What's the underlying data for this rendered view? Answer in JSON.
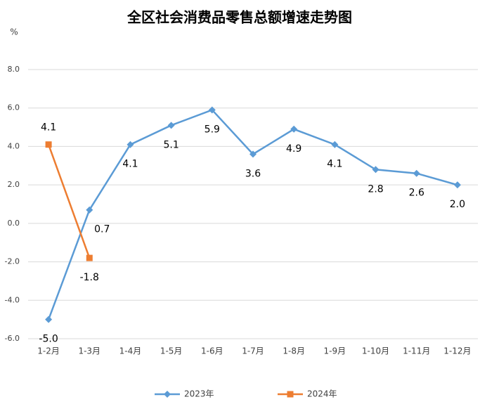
{
  "chart_data": {
    "type": "line",
    "title": "全区社会消费品零售总额增速走势图",
    "y_axis_label": "%",
    "categories": [
      "1-2月",
      "1-3月",
      "1-4月",
      "1-5月",
      "1-6月",
      "1-7月",
      "1-8月",
      "1-9月",
      "1-10月",
      "1-11月",
      "1-12月"
    ],
    "series": [
      {
        "name": "2023年",
        "color": "#5b9bd5",
        "marker": "diamond",
        "values": [
          -5.0,
          0.7,
          4.1,
          5.1,
          5.9,
          3.6,
          4.9,
          4.1,
          2.8,
          2.6,
          2.0
        ],
        "value_labels": [
          "-5.0",
          "0.7",
          "4.1",
          "5.1",
          "5.9",
          "3.6",
          "4.9",
          "4.1",
          "2.8",
          "2.6",
          "2.0"
        ]
      },
      {
        "name": "2024年",
        "color": "#ed7d31",
        "marker": "square",
        "values": [
          4.1,
          -1.8,
          null,
          null,
          null,
          null,
          null,
          null,
          null,
          null,
          null
        ],
        "value_labels": [
          "4.1",
          "-1.8",
          null,
          null,
          null,
          null,
          null,
          null,
          null,
          null,
          null
        ]
      }
    ],
    "ylim": [
      -6,
      8
    ],
    "yticks": [
      {
        "value": -6,
        "label": "-6.0"
      },
      {
        "value": -4,
        "label": "-4.0"
      },
      {
        "value": -2,
        "label": "-2.0"
      },
      {
        "value": 0,
        "label": "0.0"
      },
      {
        "value": 2,
        "label": "2.0"
      },
      {
        "value": 4,
        "label": "4.0"
      },
      {
        "value": 6,
        "label": "6.0"
      },
      {
        "value": 8,
        "label": "8.0"
      }
    ],
    "grid": true,
    "legend": "bottom"
  }
}
